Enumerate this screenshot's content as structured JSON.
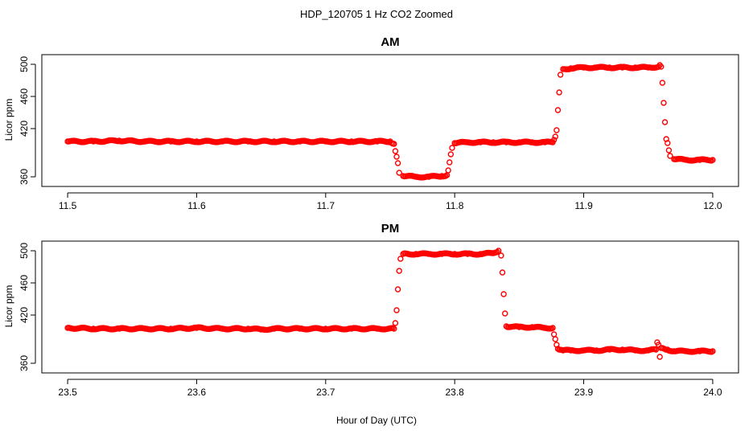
{
  "figure": {
    "title": "HDP_120705  1 Hz CO2 Zoomed",
    "xlabel": "Hour of Day (UTC)",
    "point_color": "#ff0000"
  },
  "chart_data": [
    {
      "type": "scatter",
      "title": "AM",
      "ylabel": "Licor ppm",
      "xlim": [
        11.48,
        12.02
      ],
      "ylim": [
        348,
        512
      ],
      "xticks": [
        11.5,
        11.6,
        11.7,
        11.8,
        11.9,
        12.0
      ],
      "xtick_labels": [
        "11.5",
        "11.6",
        "11.7",
        "11.8",
        "11.9",
        "12.0"
      ],
      "yticks": [
        360,
        420,
        460,
        500
      ],
      "ytick_labels": [
        "360",
        "420",
        "460",
        "500"
      ],
      "grid": false,
      "legend": "none",
      "points": [
        [
          11.5,
          404
        ],
        [
          11.52,
          404
        ],
        [
          11.54,
          405
        ],
        [
          11.56,
          404
        ],
        [
          11.58,
          404
        ],
        [
          11.6,
          404
        ],
        [
          11.62,
          404
        ],
        [
          11.64,
          404
        ],
        [
          11.66,
          404
        ],
        [
          11.68,
          404
        ],
        [
          11.7,
          404
        ],
        [
          11.72,
          404
        ],
        [
          11.74,
          404
        ],
        [
          11.75,
          404
        ],
        [
          11.753,
          401
        ],
        [
          11.754,
          392
        ],
        [
          11.755,
          385
        ],
        [
          11.756,
          377
        ],
        [
          11.757,
          365
        ],
        [
          11.76,
          361
        ],
        [
          11.77,
          360
        ],
        [
          11.78,
          360
        ],
        [
          11.79,
          361
        ],
        [
          11.794,
          362
        ],
        [
          11.795,
          368
        ],
        [
          11.796,
          378
        ],
        [
          11.797,
          388
        ],
        [
          11.798,
          396
        ],
        [
          11.8,
          402
        ],
        [
          11.81,
          403
        ],
        [
          11.82,
          403
        ],
        [
          11.83,
          403
        ],
        [
          11.84,
          403
        ],
        [
          11.85,
          403
        ],
        [
          11.86,
          403
        ],
        [
          11.87,
          403
        ],
        [
          11.876,
          403
        ],
        [
          11.877,
          406
        ],
        [
          11.878,
          410
        ],
        [
          11.879,
          418
        ],
        [
          11.88,
          443
        ],
        [
          11.881,
          465
        ],
        [
          11.882,
          487
        ],
        [
          11.884,
          494
        ],
        [
          11.89,
          495
        ],
        [
          11.9,
          496
        ],
        [
          11.91,
          496
        ],
        [
          11.92,
          496
        ],
        [
          11.93,
          496
        ],
        [
          11.94,
          496
        ],
        [
          11.95,
          496
        ],
        [
          11.958,
          497
        ],
        [
          11.959,
          499
        ],
        [
          11.96,
          497
        ],
        [
          11.961,
          477
        ],
        [
          11.962,
          452
        ],
        [
          11.963,
          428
        ],
        [
          11.964,
          407
        ],
        [
          11.965,
          402
        ],
        [
          11.966,
          393
        ],
        [
          11.967,
          386
        ],
        [
          11.97,
          382
        ],
        [
          11.98,
          381
        ],
        [
          11.99,
          381
        ],
        [
          12.0,
          381
        ]
      ]
    },
    {
      "type": "scatter",
      "title": "PM",
      "ylabel": "Licor ppm",
      "xlim": [
        23.48,
        24.02
      ],
      "ylim": [
        348,
        512
      ],
      "xticks": [
        23.5,
        23.6,
        23.7,
        23.8,
        23.9,
        24.0
      ],
      "xtick_labels": [
        "23.5",
        "23.6",
        "23.7",
        "23.8",
        "23.9",
        "24.0"
      ],
      "yticks": [
        360,
        420,
        460,
        500
      ],
      "ytick_labels": [
        "360",
        "420",
        "460",
        "500"
      ],
      "grid": false,
      "legend": "none",
      "points": [
        [
          23.5,
          404
        ],
        [
          23.52,
          403
        ],
        [
          23.54,
          403
        ],
        [
          23.56,
          403
        ],
        [
          23.58,
          403
        ],
        [
          23.6,
          404
        ],
        [
          23.62,
          403
        ],
        [
          23.64,
          403
        ],
        [
          23.65,
          402
        ],
        [
          23.66,
          403
        ],
        [
          23.68,
          403
        ],
        [
          23.7,
          403
        ],
        [
          23.72,
          403
        ],
        [
          23.74,
          403
        ],
        [
          23.753,
          403
        ],
        [
          23.754,
          410
        ],
        [
          23.755,
          426
        ],
        [
          23.756,
          452
        ],
        [
          23.757,
          475
        ],
        [
          23.758,
          490
        ],
        [
          23.76,
          496
        ],
        [
          23.77,
          496
        ],
        [
          23.78,
          496
        ],
        [
          23.79,
          496
        ],
        [
          23.8,
          496
        ],
        [
          23.81,
          496
        ],
        [
          23.82,
          496
        ],
        [
          23.83,
          497
        ],
        [
          23.834,
          500
        ],
        [
          23.836,
          494
        ],
        [
          23.837,
          473
        ],
        [
          23.838,
          446
        ],
        [
          23.839,
          422
        ],
        [
          23.84,
          406
        ],
        [
          23.85,
          405
        ],
        [
          23.86,
          405
        ],
        [
          23.87,
          404
        ],
        [
          23.876,
          404
        ],
        [
          23.877,
          396
        ],
        [
          23.878,
          390
        ],
        [
          23.879,
          383
        ],
        [
          23.88,
          378
        ],
        [
          23.884,
          376
        ],
        [
          23.89,
          376
        ],
        [
          23.9,
          376
        ],
        [
          23.91,
          376
        ],
        [
          23.92,
          377
        ],
        [
          23.93,
          377
        ],
        [
          23.94,
          376
        ],
        [
          23.95,
          376
        ],
        [
          23.956,
          377
        ],
        [
          23.957,
          386
        ],
        [
          23.958,
          383
        ],
        [
          23.959,
          368
        ],
        [
          23.96,
          379
        ],
        [
          23.965,
          377
        ],
        [
          23.97,
          375
        ],
        [
          23.98,
          375
        ],
        [
          23.99,
          375
        ],
        [
          24.0,
          375
        ]
      ]
    }
  ]
}
